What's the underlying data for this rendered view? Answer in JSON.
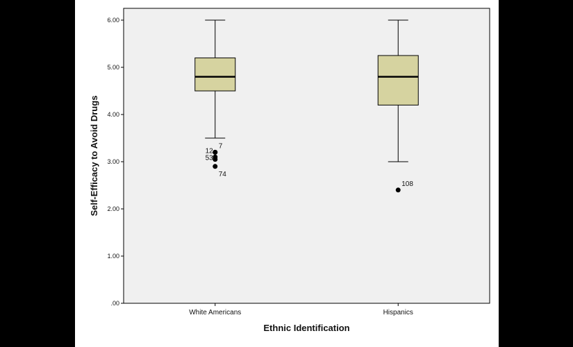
{
  "chart_data": {
    "type": "boxplot",
    "xlabel": "Ethnic Identification",
    "ylabel": "Self-Efficacy to Avoid Drugs",
    "ylim": [
      0,
      6.0
    ],
    "yticks": [
      0,
      1,
      2,
      3,
      4,
      5,
      6
    ],
    "ytick_labels": [
      ".00",
      "1.00",
      "2.00",
      "3.00",
      "4.00",
      "5.00",
      "6.00"
    ],
    "colors": {
      "box_fill": "#d6d3a0",
      "plot_bg": "#f0f0f0",
      "frame": "#000000"
    },
    "categories": [
      "White Americans",
      "Hispanics"
    ],
    "boxes": [
      {
        "category": "White Americans",
        "whisker_low": 3.5,
        "q1": 4.5,
        "median": 4.8,
        "q3": 5.2,
        "whisker_high": 6.0,
        "outliers": [
          {
            "label": "12",
            "value": 3.2,
            "offset": -1
          },
          {
            "label": "7",
            "value": 3.2,
            "offset": 1
          },
          {
            "label": "",
            "value": 3.1,
            "offset": 0
          },
          {
            "label": "53",
            "value": 3.05,
            "offset": -1
          },
          {
            "label": "74",
            "value": 2.9,
            "offset": 1
          }
        ]
      },
      {
        "category": "Hispanics",
        "whisker_low": 3.0,
        "q1": 4.2,
        "median": 4.8,
        "q3": 5.25,
        "whisker_high": 6.0,
        "outliers": [
          {
            "label": "108",
            "value": 2.4,
            "offset": 1
          }
        ]
      }
    ]
  }
}
